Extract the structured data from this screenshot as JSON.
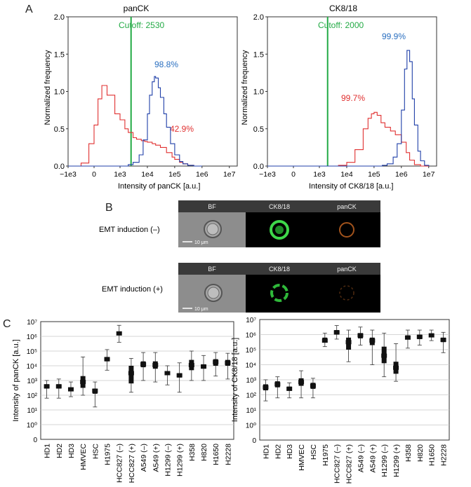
{
  "panels": {
    "a": "A",
    "b": "B",
    "c": "C"
  },
  "colors": {
    "red": "#e03030",
    "blue": "#1f3fa8",
    "green": "#22aa44",
    "blue_text": "#2a6fc0",
    "box": "#111111"
  },
  "histograms": [
    {
      "title": "panCK",
      "cutoff_label": "Cutoff: 2530",
      "xlabel": "Intensity of panCK [a.u.]",
      "ylabel": "Normalized frequency",
      "red_label": "42.9%",
      "blue_label": "98.8%"
    },
    {
      "title": "CK8/18",
      "cutoff_label": "Cutoff: 2000",
      "xlabel": "Intensity of CK8/18 [a.u.]",
      "ylabel": "Normalized frequency",
      "red_label": "99.7%",
      "blue_label": "99.9%"
    }
  ],
  "imaging": {
    "headers": [
      "BF",
      "CK8/18",
      "panCK"
    ],
    "rows": [
      {
        "label": "EMT induction (–)",
        "scale": "10 μm"
      },
      {
        "label": "EMT induction (+)",
        "scale": "10 μm"
      }
    ]
  },
  "chart_data": [
    {
      "type": "line",
      "title": "panCK",
      "xlabel": "Intensity of panCK [a.u.]",
      "ylabel": "Normalized frequency",
      "x_ticks": [
        "−1e3",
        "0",
        "1e3",
        "1e4",
        "1e5",
        "1e6",
        "1e7"
      ],
      "y_ticks": [
        "0.0",
        "0.5",
        "1.0",
        "1.5",
        "2.0"
      ],
      "ylim": [
        0,
        2.0
      ],
      "cutoff": 2530,
      "series": [
        {
          "name": "red",
          "color": "#e03030",
          "x": [
            -1000,
            -500,
            -200,
            0,
            150,
            300,
            500,
            800,
            1000,
            1500,
            2000,
            3000,
            4000,
            6000,
            8000,
            10000,
            15000,
            20000,
            30000,
            50000,
            80000,
            100000,
            150000,
            200000,
            300000,
            500000
          ],
          "y": [
            0,
            0.04,
            0.3,
            0.55,
            0.9,
            1.08,
            0.95,
            0.7,
            0.62,
            0.5,
            0.45,
            0.38,
            0.36,
            0.34,
            0.33,
            0.32,
            0.3,
            0.28,
            0.25,
            0.18,
            0.12,
            0.09,
            0.05,
            0.03,
            0.01,
            0
          ]
        },
        {
          "name": "blue",
          "color": "#1f3fa8",
          "x": [
            -1000,
            0,
            1000,
            2000,
            3000,
            5000,
            7000,
            10000,
            12000,
            15000,
            18000,
            20000,
            25000,
            30000,
            40000,
            50000,
            70000,
            100000,
            150000,
            200000,
            300000,
            500000,
            1000000
          ],
          "y": [
            0,
            0,
            0,
            0.02,
            0.05,
            0.15,
            0.35,
            0.7,
            0.95,
            1.13,
            1.2,
            1.18,
            1.05,
            0.92,
            0.7,
            0.52,
            0.3,
            0.15,
            0.06,
            0.03,
            0.01,
            0,
            0
          ]
        }
      ]
    },
    {
      "type": "line",
      "title": "CK8/18",
      "xlabel": "Intensity of CK8/18 [a.u.]",
      "ylabel": "Normalized frequency",
      "x_ticks": [
        "−1e3",
        "0",
        "1e3",
        "1e4",
        "1e5",
        "1e6",
        "1e7"
      ],
      "y_ticks": [
        "0.0",
        "0.5",
        "1.0",
        "1.5",
        "2.0"
      ],
      "ylim": [
        0,
        2.0
      ],
      "cutoff": 2000,
      "series": [
        {
          "name": "red",
          "color": "#e03030",
          "x": [
            -1000,
            0,
            1000,
            2000,
            5000,
            10000,
            20000,
            40000,
            60000,
            80000,
            100000,
            130000,
            180000,
            250000,
            400000,
            600000,
            1000000,
            1500000,
            2000000,
            3000000,
            5000000,
            10000000
          ],
          "y": [
            0,
            0,
            0,
            0,
            0.01,
            0.05,
            0.22,
            0.5,
            0.64,
            0.7,
            0.72,
            0.68,
            0.58,
            0.52,
            0.47,
            0.42,
            0.32,
            0.18,
            0.08,
            0.02,
            0,
            0
          ]
        },
        {
          "name": "blue",
          "color": "#1f3fa8",
          "x": [
            -1000,
            0,
            1000,
            100000,
            200000,
            300000,
            500000,
            700000,
            1000000,
            1300000,
            1600000,
            2000000,
            2500000,
            3000000,
            4000000,
            5000000,
            7000000,
            10000000
          ],
          "y": [
            0,
            0,
            0,
            0,
            0.01,
            0.03,
            0.12,
            0.3,
            0.75,
            1.3,
            1.55,
            1.4,
            0.9,
            0.55,
            0.2,
            0.07,
            0.01,
            0
          ]
        }
      ]
    },
    {
      "type": "box",
      "ylabel": "Intensity of panCK [a.u.]",
      "y_ticks": [
        "0",
        "10⁰",
        "10¹",
        "10²",
        "10³",
        "10⁴",
        "10⁵",
        "10⁶",
        "10⁷"
      ],
      "categories": [
        "HD1",
        "HD2",
        "HD3",
        "HMVEC",
        "HSC",
        "H1975",
        "HCC827 (–)",
        "HCC827 (+)",
        "A549 (–)",
        "A549 (+)",
        "H1299 (–)",
        "H1299 (+)",
        "H358",
        "H820",
        "H1650",
        "H2228"
      ],
      "log10": {
        "median": [
          2.6,
          2.6,
          2.4,
          2.9,
          2.3,
          4.45,
          6.2,
          3.5,
          4.1,
          4.05,
          3.5,
          3.35,
          4.05,
          3.95,
          4.25,
          4.2
        ],
        "q1": [
          2.45,
          2.45,
          2.3,
          2.5,
          2.1,
          4.3,
          6.1,
          2.8,
          3.9,
          3.8,
          3.4,
          3.2,
          3.7,
          3.8,
          4.0,
          4.0
        ],
        "q3": [
          2.75,
          2.75,
          2.5,
          3.3,
          2.45,
          4.6,
          6.3,
          4.0,
          4.3,
          4.3,
          3.6,
          3.5,
          4.4,
          4.1,
          4.45,
          4.4
        ],
        "wlo": [
          1.8,
          1.8,
          1.9,
          2.0,
          1.2,
          3.7,
          5.6,
          2.2,
          3.0,
          2.9,
          2.7,
          2.2,
          3.0,
          3.0,
          3.3,
          3.1
        ],
        "whi": [
          3.0,
          3.1,
          2.9,
          4.6,
          2.9,
          5.1,
          6.75,
          4.5,
          4.9,
          4.9,
          4.0,
          4.2,
          5.0,
          4.7,
          4.9,
          4.85
        ]
      }
    },
    {
      "type": "box",
      "ylabel": "Intensity of CK8/18 [a.u.]",
      "y_ticks": [
        "0",
        "10⁰",
        "10¹",
        "10²",
        "10³",
        "10⁴",
        "10⁵",
        "10⁶",
        "10⁷"
      ],
      "categories": [
        "HD1",
        "HD2",
        "HD3",
        "HMVEC",
        "HSC",
        "H1975",
        "HCC827 (–)",
        "HCC827 (+)",
        "A549 (–)",
        "A549 (+)",
        "H1299 (–)",
        "H1299 (+)",
        "H358",
        "H820",
        "H1650",
        "H2228"
      ],
      "log10": {
        "median": [
          2.5,
          2.7,
          2.4,
          2.85,
          2.6,
          5.6,
          6.15,
          5.5,
          5.95,
          5.6,
          4.6,
          3.8,
          5.8,
          5.85,
          5.95,
          5.65
        ],
        "q1": [
          2.3,
          2.5,
          2.3,
          2.6,
          2.4,
          5.5,
          6.0,
          5.0,
          5.75,
          5.3,
          4.1,
          3.4,
          5.7,
          5.7,
          5.85,
          5.5
        ],
        "q3": [
          2.7,
          2.9,
          2.55,
          3.1,
          2.8,
          5.8,
          6.3,
          5.8,
          6.1,
          5.8,
          5.2,
          4.2,
          5.95,
          6.0,
          6.05,
          5.8
        ],
        "wlo": [
          1.6,
          1.8,
          1.8,
          1.8,
          1.8,
          5.2,
          5.7,
          4.2,
          5.3,
          4.0,
          3.2,
          2.9,
          5.1,
          5.3,
          5.6,
          4.8
        ],
        "whi": [
          3.0,
          3.2,
          2.8,
          3.6,
          3.1,
          6.1,
          6.6,
          6.3,
          6.5,
          6.3,
          6.1,
          5.4,
          6.3,
          6.3,
          6.3,
          6.15
        ]
      }
    }
  ]
}
